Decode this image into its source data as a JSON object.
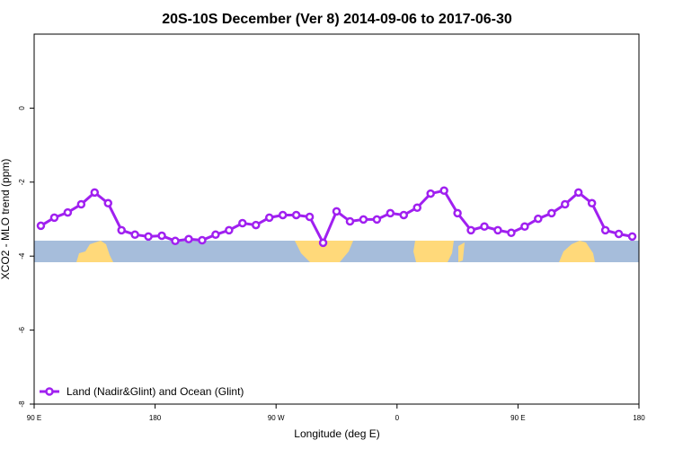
{
  "chart_data": {
    "type": "line",
    "title": "20S-10S December (Ver 8)   2014-09-06 to 2017-06-30",
    "x_label": "Longitude (deg E)",
    "y_label": "XCO2 - MLO trend (ppm)",
    "x": [
      95,
      105,
      115,
      125,
      135,
      145,
      155,
      165,
      175,
      185,
      195,
      205,
      215,
      225,
      235,
      245,
      255,
      265,
      275,
      285,
      295,
      305,
      315,
      325,
      335,
      345,
      355,
      365,
      375,
      385,
      395,
      405,
      415,
      425,
      435,
      445,
      455,
      465,
      475,
      485,
      495,
      505,
      515,
      525,
      535
    ],
    "series": [
      {
        "name": "Land (Nadir&Glint) and Ocean (Glint)",
        "color": "#a020f0",
        "values": [
          -3.18,
          -2.96,
          -2.82,
          -2.6,
          -2.28,
          -2.57,
          -3.3,
          -3.42,
          -3.47,
          -3.45,
          -3.59,
          -3.54,
          -3.57,
          -3.42,
          -3.3,
          -3.11,
          -3.16,
          -2.96,
          -2.89,
          -2.89,
          -2.94,
          -3.64,
          -2.79,
          -3.06,
          -3.01,
          -3.01,
          -2.84,
          -2.89,
          -2.69,
          -2.31,
          -2.23,
          -2.84,
          -3.3,
          -3.2,
          -3.3,
          -3.37,
          -3.2,
          -2.99,
          -2.84,
          -2.6,
          -2.28,
          -2.57,
          -3.3,
          -3.4,
          -3.47
        ]
      }
    ],
    "xlim": [
      90,
      540
    ],
    "ylim": [
      -8,
      2
    ],
    "xticks": [
      {
        "value": 90,
        "label": "90 E"
      },
      {
        "value": 180,
        "label": "180"
      },
      {
        "value": 270,
        "label": "90 W"
      },
      {
        "value": 360,
        "label": "0"
      },
      {
        "value": 450,
        "label": "90 E"
      },
      {
        "value": 540,
        "label": "180"
      }
    ],
    "yticks": [
      -8,
      -6,
      -4,
      -2,
      0
    ],
    "legend": "bottom-left"
  }
}
